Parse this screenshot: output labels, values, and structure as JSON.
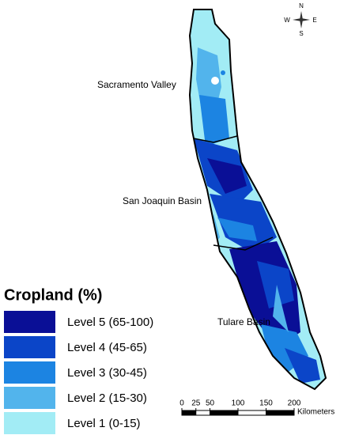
{
  "legend": {
    "title": "Cropland (%)",
    "items": [
      {
        "label": "Level 5 (65-100)",
        "color": "#0a0f96"
      },
      {
        "label": "Level 4 (45-65)",
        "color": "#0b45c8"
      },
      {
        "label": "Level 3 (30-45)",
        "color": "#1c84e2"
      },
      {
        "label": "Level 2 (15-30)",
        "color": "#52b4ec"
      },
      {
        "label": "Level 1 (0-15)",
        "color": "#a2ecf5"
      }
    ]
  },
  "regions": [
    "Sacramento Valley",
    "San Joaquin Basin",
    "Tulare Basin"
  ],
  "compass": {
    "north": "N",
    "south": "S",
    "east": "E",
    "west": "W"
  },
  "scale_bar": {
    "ticks": [
      0,
      25,
      50,
      100,
      150,
      200
    ],
    "unit": "Kilometers"
  }
}
